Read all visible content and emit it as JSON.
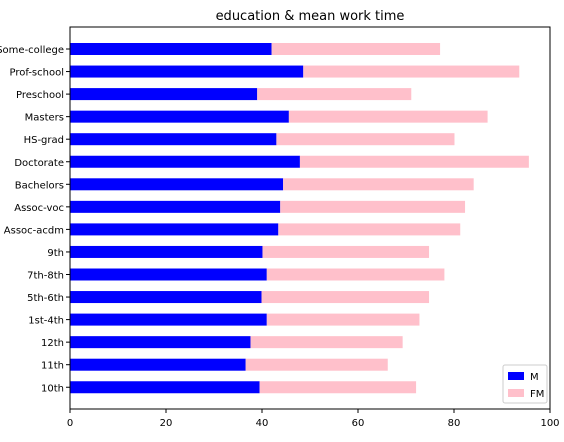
{
  "chart_data": {
    "type": "bar",
    "orientation": "horizontal",
    "stacked": true,
    "title": "education & mean work time",
    "xlabel": "",
    "ylabel": "",
    "xlim": [
      0,
      100
    ],
    "x_ticks": [
      0,
      20,
      40,
      60,
      80,
      100
    ],
    "grid": false,
    "legend_position": "bottom-right",
    "categories": [
      "Some-college",
      "Prof-school",
      "Preschool",
      "Masters",
      "HS-grad",
      "Doctorate",
      "Bachelors",
      "Assoc-voc",
      "Assoc-acdm",
      "9th",
      "7th-8th",
      "5th-6th",
      "1st-4th",
      "12th",
      "11th",
      "10th"
    ],
    "series": [
      {
        "name": "M",
        "color": "#0000ff",
        "values": [
          42.0,
          48.6,
          39.0,
          45.6,
          43.0,
          47.9,
          44.4,
          43.8,
          43.4,
          40.1,
          41.0,
          39.9,
          41.0,
          37.6,
          36.6,
          39.5
        ]
      },
      {
        "name": "FM",
        "color": "#ffc0cb",
        "values": [
          35.1,
          45.0,
          32.1,
          41.4,
          37.1,
          47.7,
          39.7,
          38.5,
          37.9,
          34.7,
          37.0,
          34.9,
          31.8,
          31.7,
          29.6,
          32.6
        ]
      }
    ]
  }
}
